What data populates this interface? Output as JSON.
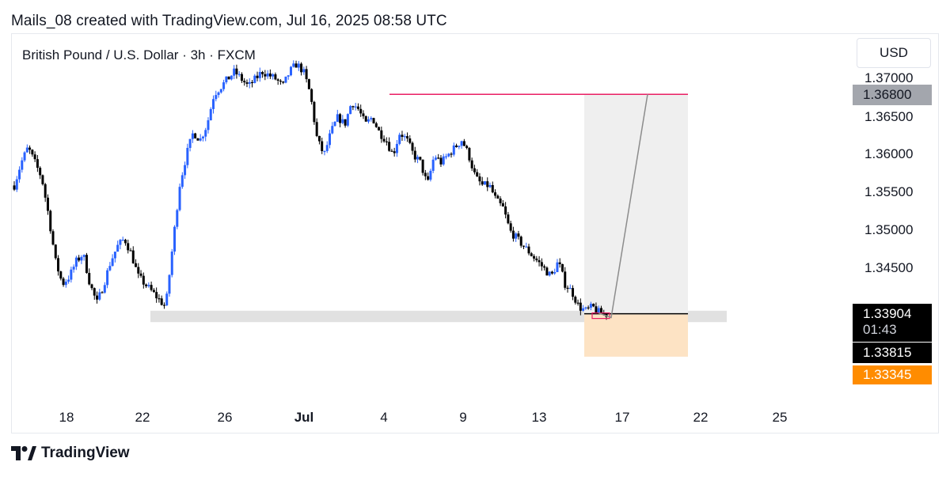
{
  "header": {
    "caption": "Mails_08 created with TradingView.com, Jul 16, 2025 08:58 UTC"
  },
  "symbol": {
    "title": "British Pound / U.S. Dollar · 3h · FXCM"
  },
  "currency": "USD",
  "logo_text": "TradingView",
  "price_axis": {
    "ticks": [
      "1.37000",
      "1.36500",
      "1.36000",
      "1.35500",
      "1.35000",
      "1.34500"
    ],
    "target_label": "1.36800",
    "last_price_label": "1.33904",
    "countdown": "01:43",
    "low_label": "1.33815",
    "stop_label": "1.33345"
  },
  "time_axis": {
    "ticks": [
      {
        "label": "18",
        "bold": false
      },
      {
        "label": "22",
        "bold": false
      },
      {
        "label": "26",
        "bold": false
      },
      {
        "label": "Jul",
        "bold": true
      },
      {
        "label": "4",
        "bold": false
      },
      {
        "label": "9",
        "bold": false
      },
      {
        "label": "13",
        "bold": false
      },
      {
        "label": "17",
        "bold": false
      },
      {
        "label": "22",
        "bold": false
      },
      {
        "label": "25",
        "bold": false
      }
    ]
  },
  "colors": {
    "up": "#2962ff",
    "down": "#000000",
    "target_line": "#e91e63",
    "profit_zone": "#efefef",
    "risk_zone": "#fde3c4",
    "support_zone": "#e1e1e1",
    "projection": "#8c8c8c"
  },
  "chart_data": {
    "type": "candlestick",
    "symbol": "GBPUSD",
    "timeframe": "3h",
    "ylim": [
      1.332,
      1.373
    ],
    "close_path": [
      1.356,
      1.359,
      1.361,
      1.359,
      1.357,
      1.352,
      1.346,
      1.343,
      1.344,
      1.346,
      1.347,
      1.343,
      1.3405,
      1.343,
      1.346,
      1.348,
      1.349,
      1.347,
      1.344,
      1.343,
      1.342,
      1.341,
      1.34,
      1.348,
      1.356,
      1.36,
      1.363,
      1.362,
      1.364,
      1.368,
      1.369,
      1.37,
      1.371,
      1.37,
      1.369,
      1.37,
      1.371,
      1.3705,
      1.37,
      1.369,
      1.371,
      1.372,
      1.371,
      1.368,
      1.362,
      1.36,
      1.363,
      1.365,
      1.364,
      1.367,
      1.366,
      1.364,
      1.365,
      1.363,
      1.362,
      1.36,
      1.363,
      1.362,
      1.36,
      1.359,
      1.356,
      1.36,
      1.359,
      1.36,
      1.361,
      1.362,
      1.36,
      1.357,
      1.356,
      1.356,
      1.354,
      1.353,
      1.35,
      1.349,
      1.348,
      1.347,
      1.346,
      1.345,
      1.344,
      1.346,
      1.343,
      1.342,
      1.34,
      1.3395,
      1.34,
      1.3392,
      1.339
    ],
    "support_zone": [
      1.338,
      1.3395
    ],
    "position": {
      "type": "long",
      "entry": 1.339,
      "target": 1.368,
      "stop": 1.33345,
      "last_price": 1.33904,
      "low": 1.33815
    }
  }
}
